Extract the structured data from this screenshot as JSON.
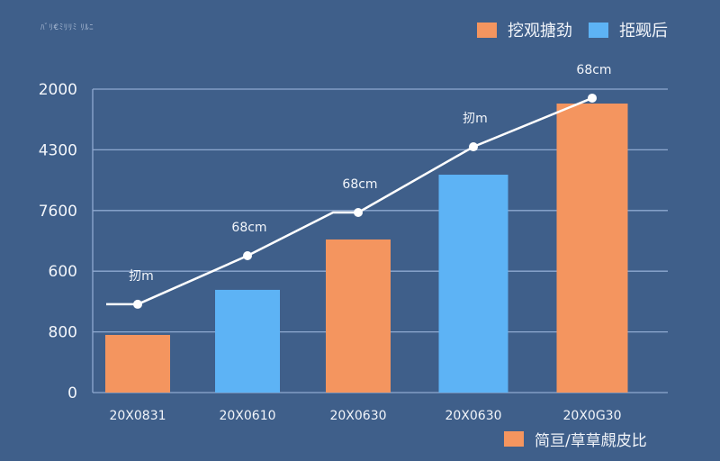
{
  "chart": {
    "subtitle": "ﾊﾞﾘ€ﾐﾘﾘﾐ ﾘﾙﾆ",
    "legend": [
      {
        "label": "挖观搪劲",
        "color": "#f4955f"
      },
      {
        "label": "挋觋后",
        "color": "#5db3f5"
      }
    ],
    "legend_bottom": {
      "label": "简亘/䓍䓍覤皮比",
      "color": "#f4955f"
    },
    "colors": {
      "background": "#3f5f8a",
      "grid": "#8fa9d0",
      "line": "#ffffff",
      "bar_orange": "#f4955f",
      "bar_blue": "#5db3f5"
    }
  },
  "chart_data": {
    "type": "bar",
    "title": "",
    "xlabel": "",
    "ylabel": "",
    "categories": [
      "20X0831",
      "20X0610",
      "20X0630",
      "20X0630",
      "20X0G30"
    ],
    "y_tick_labels": [
      "2000",
      "4300",
      "7600",
      "600",
      "800",
      "0"
    ],
    "ylim": [
      0,
      2000
    ],
    "grid": true,
    "legend_position": "top-right",
    "series": [
      {
        "name": "挖观搪劲",
        "type": "bar",
        "color": "#f4955f",
        "values": [
          380,
          null,
          1009,
          null,
          1905
        ]
      },
      {
        "name": "挋觋后",
        "type": "bar",
        "color": "#5db3f5",
        "values": [
          null,
          677,
          null,
          1436,
          null
        ]
      },
      {
        "name": "简亘/䓍䓍覤皮比",
        "type": "line",
        "color": "#ffffff",
        "values": [
          582,
          902,
          1187,
          1620,
          1941
        ]
      }
    ],
    "bar_values": [
      380,
      677,
      1009,
      1436,
      1905
    ],
    "bar_colors": [
      "#f4955f",
      "#5db3f5",
      "#f4955f",
      "#5db3f5",
      "#f4955f"
    ],
    "line_values": [
      582,
      902,
      1187,
      1620,
      1941
    ],
    "point_labels": [
      "扨m",
      "68cm",
      "68cm",
      "扨m",
      "68cm"
    ]
  }
}
